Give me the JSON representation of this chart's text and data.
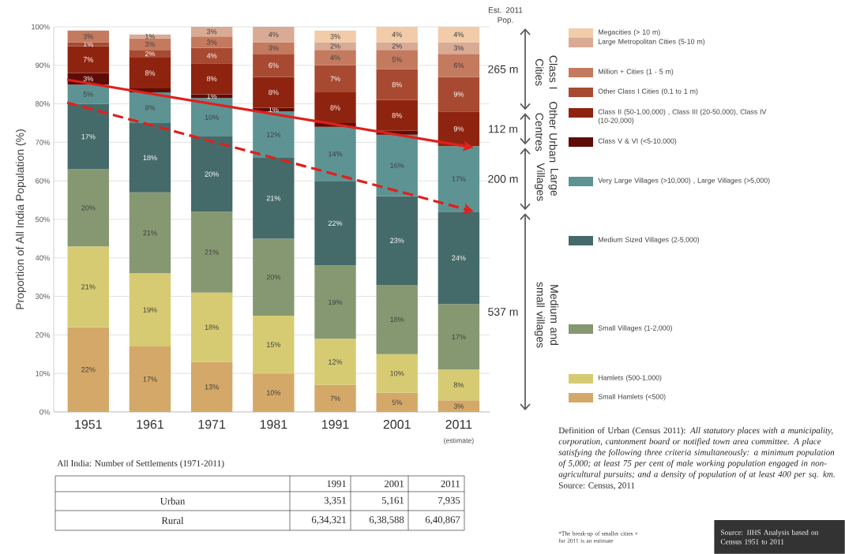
{
  "chart_data": [
    {
      "type": "bar",
      "stacked": true,
      "ylabel": "Proportion of All India Population (%)",
      "categories": [
        "1951",
        "1961",
        "1971",
        "1981",
        "1991",
        "2001",
        "2011"
      ],
      "ylim": [
        0,
        100
      ],
      "yticks": [
        {
          "value": 0,
          "label": "0%"
        },
        {
          "value": 10,
          "label": "10%"
        },
        {
          "value": 20,
          "label": "20%"
        },
        {
          "value": 30,
          "label": "30%"
        },
        {
          "value": 40,
          "label": "40%"
        },
        {
          "value": 50,
          "label": "50%"
        },
        {
          "value": 60,
          "label": "60%"
        },
        {
          "value": 70,
          "label": "70%"
        },
        {
          "value": 80,
          "label": "80%"
        },
        {
          "value": 90,
          "label": "90%"
        },
        {
          "value": 100,
          "label": "100%"
        }
      ],
      "grid": "y",
      "legend": "right",
      "series": [
        {
          "name": "Small Hamlets (<500)",
          "color": "#d4a868",
          "values": [
            22,
            17,
            13,
            10,
            7,
            5,
            3
          ],
          "value_labels": [
            "22%",
            "17%",
            "13%",
            "10%",
            "7%",
            "5%",
            "3%"
          ]
        },
        {
          "name": "Hamlets (500-1,000)",
          "color": "#d6cb72",
          "values": [
            21,
            19,
            18,
            15,
            12,
            10,
            8
          ],
          "value_labels": [
            "21%",
            "19%",
            "18%",
            "15%",
            "12%",
            "10%",
            "8%"
          ]
        },
        {
          "name": "Small Villages (1-2,000)",
          "color": "#869872",
          "values": [
            20,
            21,
            21,
            20,
            19,
            18,
            17
          ],
          "value_labels": [
            "20%",
            "21%",
            "21%",
            "20%",
            "19%",
            "18%",
            "17%"
          ]
        },
        {
          "name": "Medium Sized Villages (2-5,000)",
          "color": "#456a6a",
          "values": [
            17,
            18,
            19.5,
            21,
            22,
            23,
            24
          ],
          "value_labels": [
            "17%",
            "18%",
            "20%",
            "21%",
            "22%",
            "23%",
            "24%"
          ]
        },
        {
          "name": "Very Large Villages (>10,000) , Large Villages (>5,000)",
          "color": "#5e9393",
          "values": [
            5,
            8,
            10,
            12,
            14,
            16,
            17
          ],
          "value_labels": [
            "5%",
            "8%",
            "10%",
            "12%",
            "14%",
            "16%",
            "17%"
          ]
        },
        {
          "name": "Class V & VI  (<5-10,000)",
          "color": "#5e0c06",
          "values": [
            3,
            1,
            1,
            1,
            1,
            1,
            null
          ],
          "value_labels": [
            "3%",
            null,
            "1%",
            "1%",
            null,
            null,
            null
          ]
        },
        {
          "name": "Class II (50-1,00,000) , Class III (20-50,000), Class IV (10-20,000)",
          "color": "#8e2410",
          "values": [
            7,
            8,
            8,
            8,
            8,
            8,
            9
          ],
          "value_labels": [
            "7%",
            "8%",
            "8%",
            "8%",
            "8%",
            "8%",
            "9%"
          ]
        },
        {
          "name": "Other Class I Cities (0.1 to 1 m)",
          "color": "#a84a32",
          "values": [
            1,
            2,
            4,
            6,
            7,
            8,
            9
          ],
          "value_labels": [
            "1%",
            "2%",
            "4%",
            "6%",
            "7%",
            "8%",
            "9%"
          ]
        },
        {
          "name": "Million + Cities (1 - 5 m)",
          "color": "#c47a5e",
          "values": [
            3,
            3,
            3,
            3,
            4,
            5,
            6
          ],
          "value_labels": [
            "3%",
            "3%",
            "3%",
            "3%",
            "4%",
            "5%",
            "6%"
          ]
        },
        {
          "name": "Large Metropolitan Cities (5-10 m)",
          "color": "#d9aa94",
          "values": [
            null,
            1,
            2.5,
            4,
            2,
            2,
            3
          ],
          "value_labels": [
            null,
            "1%",
            "3%",
            "4%",
            "2%",
            "2%",
            "3%"
          ]
        },
        {
          "name": "Megacities (> 10 m)",
          "color": "#f2cba8",
          "values": [
            null,
            null,
            null,
            null,
            3,
            4,
            4
          ],
          "value_labels": [
            null,
            null,
            null,
            null,
            "3%",
            "4%",
            "4%"
          ]
        }
      ],
      "annotations": [
        "(estimate)",
        "Est. 2011 Pop.",
        "265 m",
        "Class I Cities",
        "112 m",
        "Other Urban Centres",
        "200 m",
        "Large Villages",
        "537 m",
        "Medium and small villages",
        "Definition of Urban (Census 2011): *All statutory places with a municipality, corporation, cantonment board or notified town area committee. A place satisfying the following three criteria simultaneously: a minimum population of 5,000; at least 75 per cent of male working population engaged in non-agricultural pursuits; and a density of population of at least 400 per sq. km.*",
        "Source: Census, 2011",
        "*The break-up of smaller cities + for 2011 is an estimate",
        "Source: IIHS Analysis based on Census 1951 to 2011"
      ]
    },
    {
      "type": "other",
      "title": "All India: Number of Settlements (1971-2011)",
      "annotations": [
        "1991",
        "2001",
        "2011",
        "Urban",
        "3,351",
        "5,161",
        "7,935",
        "Rural",
        "6,34,321",
        "6,38,588",
        "6,40,867"
      ]
    }
  ]
}
